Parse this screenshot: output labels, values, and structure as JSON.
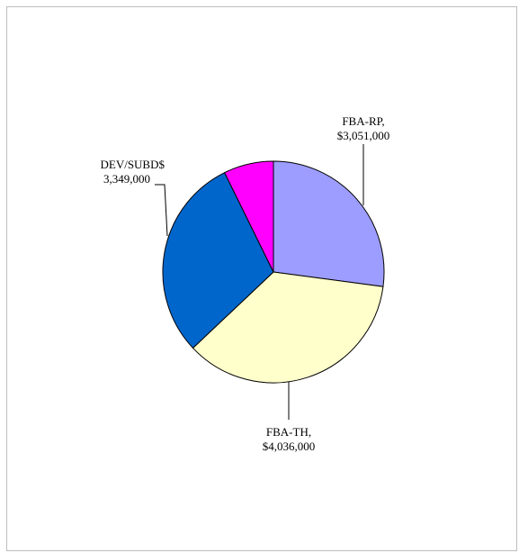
{
  "chart_data": {
    "type": "pie",
    "title": "",
    "slices": [
      {
        "label_line1": "FBA-RP,",
        "label_line2": "$3,051,000",
        "value": 3051000,
        "color": "#9d9dff"
      },
      {
        "label_line1": "FBA-TH,",
        "label_line2": "$4,036,000",
        "value": 4036000,
        "color": "#ffffcc"
      },
      {
        "label_line1": "DEV/SUBD$",
        "label_line2": "3,349,000",
        "value": 3349000,
        "color": "#0066cc"
      },
      {
        "label_line1": "",
        "label_line2": "",
        "value": 820000,
        "color": "#ff00ff"
      }
    ],
    "legend": "none",
    "grid": false
  }
}
